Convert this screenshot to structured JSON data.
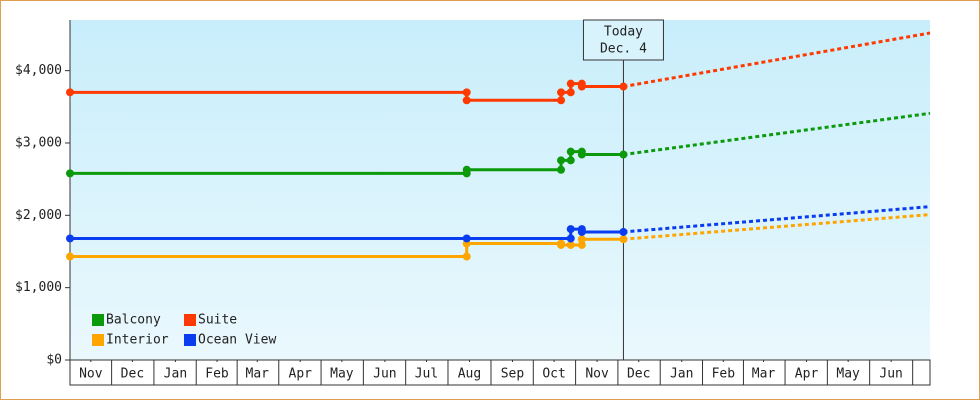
{
  "chart_data": {
    "type": "line",
    "xlim": [
      0,
      620
    ],
    "xticks": [
      {
        "value": 15,
        "label": "Nov"
      },
      {
        "value": 45,
        "label": "Dec"
      },
      {
        "value": 76,
        "label": "Jan"
      },
      {
        "value": 106,
        "label": "Feb"
      },
      {
        "value": 135,
        "label": "Mar"
      },
      {
        "value": 166,
        "label": "Apr"
      },
      {
        "value": 196,
        "label": "May"
      },
      {
        "value": 227,
        "label": "Jun"
      },
      {
        "value": 257,
        "label": "Jul"
      },
      {
        "value": 288,
        "label": "Aug"
      },
      {
        "value": 319,
        "label": "Sep"
      },
      {
        "value": 349,
        "label": "Oct"
      },
      {
        "value": 380,
        "label": "Nov"
      },
      {
        "value": 410,
        "label": "Dec"
      },
      {
        "value": 441,
        "label": "Jan"
      },
      {
        "value": 471,
        "label": "Feb"
      },
      {
        "value": 500,
        "label": "Mar"
      },
      {
        "value": 531,
        "label": "Apr"
      },
      {
        "value": 561,
        "label": "May"
      },
      {
        "value": 592,
        "label": "Jun"
      }
    ],
    "ylim": [
      0,
      4700
    ],
    "yticks": [
      {
        "value": 0,
        "label": "$0"
      },
      {
        "value": 1000,
        "label": "$1,000"
      },
      {
        "value": 2000,
        "label": "$2,000"
      },
      {
        "value": 3000,
        "label": "$3,000"
      },
      {
        "value": 4000,
        "label": "$4,000"
      }
    ],
    "annotation": {
      "x": 399,
      "lines": [
        "Today",
        "Dec. 4"
      ]
    },
    "legend": "bottom-left",
    "series": [
      {
        "name": "Balcony",
        "color": "#0c9a0c",
        "x": [
          0,
          286,
          286,
          354,
          354,
          361,
          361,
          369,
          369,
          399
        ],
        "values": [
          2580,
          2580,
          2630,
          2630,
          2760,
          2760,
          2880,
          2880,
          2840,
          2840
        ],
        "forecast": {
          "x": [
            399,
            620
          ],
          "values": [
            2840,
            3410
          ]
        }
      },
      {
        "name": "Suite",
        "color": "#ff3a00",
        "x": [
          0,
          286,
          286,
          354,
          354,
          361,
          361,
          369,
          369,
          399
        ],
        "values": [
          3700,
          3700,
          3590,
          3590,
          3700,
          3700,
          3820,
          3820,
          3780,
          3780
        ],
        "forecast": {
          "x": [
            399,
            620
          ],
          "values": [
            3780,
            4520
          ]
        }
      },
      {
        "name": "Interior",
        "color": "#ffa500",
        "x": [
          0,
          286,
          286,
          354,
          354,
          361,
          369,
          369,
          399
        ],
        "values": [
          1430,
          1430,
          1610,
          1610,
          1590,
          1590,
          1590,
          1670,
          1670
        ],
        "forecast": {
          "x": [
            399,
            620
          ],
          "values": [
            1670,
            2010
          ]
        }
      },
      {
        "name": "Ocean View",
        "color": "#0a3cf0",
        "x": [
          0,
          286,
          361,
          361,
          369,
          369,
          399
        ],
        "values": [
          1680,
          1680,
          1680,
          1810,
          1810,
          1770,
          1770
        ],
        "forecast": {
          "x": [
            399,
            620
          ],
          "values": [
            1770,
            2120
          ]
        }
      }
    ]
  }
}
